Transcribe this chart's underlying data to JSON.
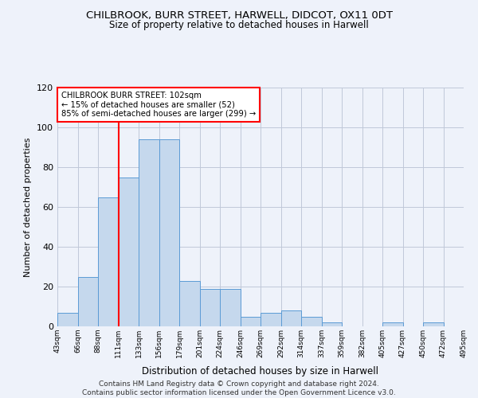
{
  "title": "CHILBROOK, BURR STREET, HARWELL, DIDCOT, OX11 0DT",
  "subtitle": "Size of property relative to detached houses in Harwell",
  "xlabel": "Distribution of detached houses by size in Harwell",
  "ylabel": "Number of detached properties",
  "bar_color": "#c5d8ed",
  "bar_edge_color": "#5b9bd5",
  "bar_heights": [
    7,
    25,
    65,
    75,
    94,
    94,
    23,
    19,
    19,
    5,
    7,
    8,
    5,
    2,
    0,
    0,
    2,
    0,
    2,
    0
  ],
  "bin_labels": [
    "43sqm",
    "66sqm",
    "88sqm",
    "111sqm",
    "133sqm",
    "156sqm",
    "179sqm",
    "201sqm",
    "224sqm",
    "246sqm",
    "269sqm",
    "292sqm",
    "314sqm",
    "337sqm",
    "359sqm",
    "382sqm",
    "405sqm",
    "427sqm",
    "450sqm",
    "472sqm",
    "495sqm"
  ],
  "ylim": [
    0,
    120
  ],
  "yticks": [
    0,
    20,
    40,
    60,
    80,
    100,
    120
  ],
  "annotation_text": "CHILBROOK BURR STREET: 102sqm\n← 15% of detached houses are smaller (52)\n85% of semi-detached houses are larger (299) →",
  "vline_x_idx": 2.5,
  "footer_line1": "Contains HM Land Registry data © Crown copyright and database right 2024.",
  "footer_line2": "Contains public sector information licensed under the Open Government Licence v3.0.",
  "background_color": "#eef2fa"
}
